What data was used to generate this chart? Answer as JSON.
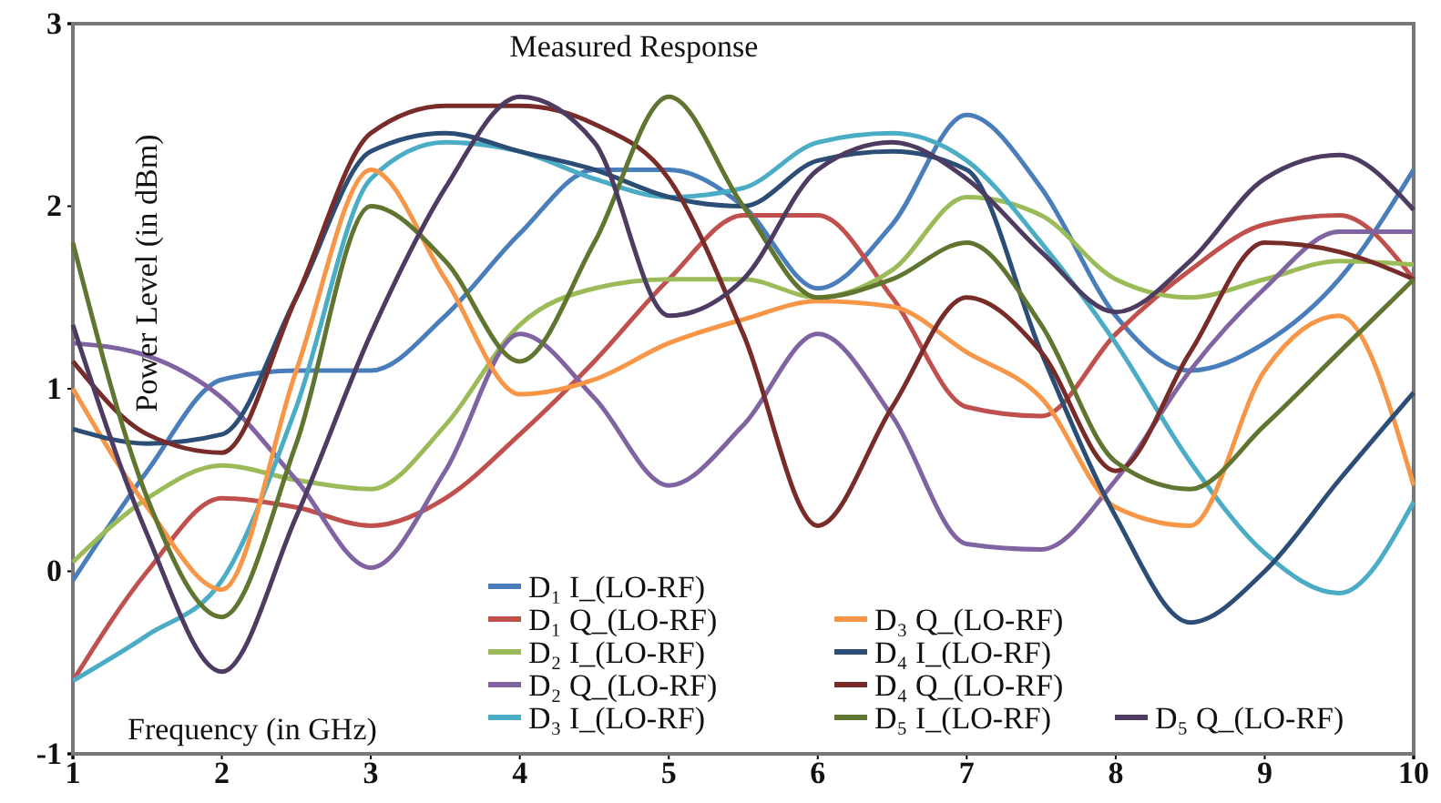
{
  "chart_data": {
    "type": "line",
    "title": "Measured Response",
    "xlabel": "Frequency  (in GHz)",
    "ylabel": "Power Level (in dBm)",
    "x": [
      1,
      1.5,
      2,
      2.5,
      3,
      3.5,
      4,
      4.5,
      5,
      5.5,
      6,
      6.5,
      7,
      7.5,
      8,
      8.5,
      9,
      9.5,
      10
    ],
    "xlim": [
      1,
      10
    ],
    "xticks": [
      1,
      2,
      3,
      4,
      5,
      6,
      7,
      8,
      9,
      10
    ],
    "ylim": [
      -1,
      3
    ],
    "yticks": [
      -1,
      0,
      1,
      2,
      3
    ],
    "grid": false,
    "legend": "bottom",
    "marker": "none",
    "line_style": "solid",
    "series": [
      {
        "name": "D₁ I_(LO-RF)",
        "color": "#4a7ebb",
        "values": [
          -0.05,
          0.55,
          1.05,
          1.1,
          1.1,
          1.4,
          1.85,
          2.2,
          2.2,
          2.0,
          1.55,
          1.9,
          2.5,
          2.1,
          1.4,
          1.1,
          1.25,
          1.6,
          2.2
        ]
      },
      {
        "name": "D₁ Q_(LO-RF)",
        "color": "#c0504d",
        "values": [
          -0.6,
          0.0,
          0.4,
          0.35,
          0.25,
          0.4,
          0.75,
          1.15,
          1.6,
          1.95,
          1.95,
          1.5,
          0.9,
          0.85,
          1.3,
          1.65,
          1.9,
          1.95,
          1.6
        ]
      },
      {
        "name": "D₂ I_(LO-RF)",
        "color": "#9bbb59",
        "values": [
          0.05,
          0.4,
          0.58,
          0.5,
          0.45,
          0.8,
          1.35,
          1.55,
          1.6,
          1.6,
          1.5,
          1.65,
          2.05,
          1.95,
          1.6,
          1.5,
          1.6,
          1.7,
          1.68
        ]
      },
      {
        "name": "D₂ Q_(LO-RF)",
        "color": "#8064a2",
        "values": [
          1.25,
          1.18,
          0.95,
          0.5,
          0.02,
          0.55,
          1.3,
          0.95,
          0.47,
          0.8,
          1.3,
          0.85,
          0.15,
          0.12,
          0.5,
          1.1,
          1.55,
          1.86,
          1.86
        ]
      },
      {
        "name": "D₃ I_(LO-RF)",
        "color": "#4bacc6",
        "values": [
          -0.6,
          -0.35,
          -0.05,
          0.9,
          2.15,
          2.35,
          2.3,
          2.15,
          2.05,
          2.1,
          2.35,
          2.4,
          2.25,
          1.8,
          1.25,
          0.6,
          0.1,
          -0.12,
          0.38
        ]
      },
      {
        "name": "D₃ Q_(LO-RF)",
        "color": "#f79646",
        "values": [
          1.0,
          0.35,
          -0.1,
          1.1,
          2.2,
          1.6,
          0.97,
          1.05,
          1.25,
          1.38,
          1.48,
          1.45,
          1.2,
          0.95,
          0.35,
          0.25,
          1.1,
          1.4,
          0.47
        ]
      },
      {
        "name": "D₄ I_(LO-RF)",
        "color": "#2c4d75",
        "values": [
          0.78,
          0.7,
          0.75,
          1.5,
          2.3,
          2.4,
          2.3,
          2.2,
          2.05,
          2.0,
          2.25,
          2.3,
          2.2,
          1.2,
          0.3,
          -0.28,
          0.0,
          0.5,
          0.98
        ]
      },
      {
        "name": "D₄ Q_(LO-RF)",
        "color": "#772c2a",
        "values": [
          1.15,
          0.75,
          0.65,
          1.5,
          2.4,
          2.55,
          2.55,
          2.45,
          2.15,
          1.3,
          0.25,
          0.9,
          1.5,
          1.2,
          0.55,
          1.2,
          1.8,
          1.75,
          1.6
        ]
      },
      {
        "name": "D₅ I_(LO-RF)",
        "color": "#5f7530",
        "values": [
          1.8,
          0.4,
          -0.25,
          0.7,
          2.0,
          1.7,
          1.15,
          1.8,
          2.6,
          2.0,
          1.5,
          1.6,
          1.8,
          1.35,
          0.6,
          0.45,
          0.8,
          1.2,
          1.6
        ]
      },
      {
        "name": "D₅ Q_(LO-RF)",
        "color": "#4d3b62",
        "values": [
          1.35,
          0.2,
          -0.55,
          0.3,
          1.3,
          2.1,
          2.6,
          2.35,
          1.4,
          1.6,
          2.2,
          2.35,
          2.15,
          1.75,
          1.42,
          1.7,
          2.15,
          2.28,
          1.98
        ]
      }
    ]
  }
}
